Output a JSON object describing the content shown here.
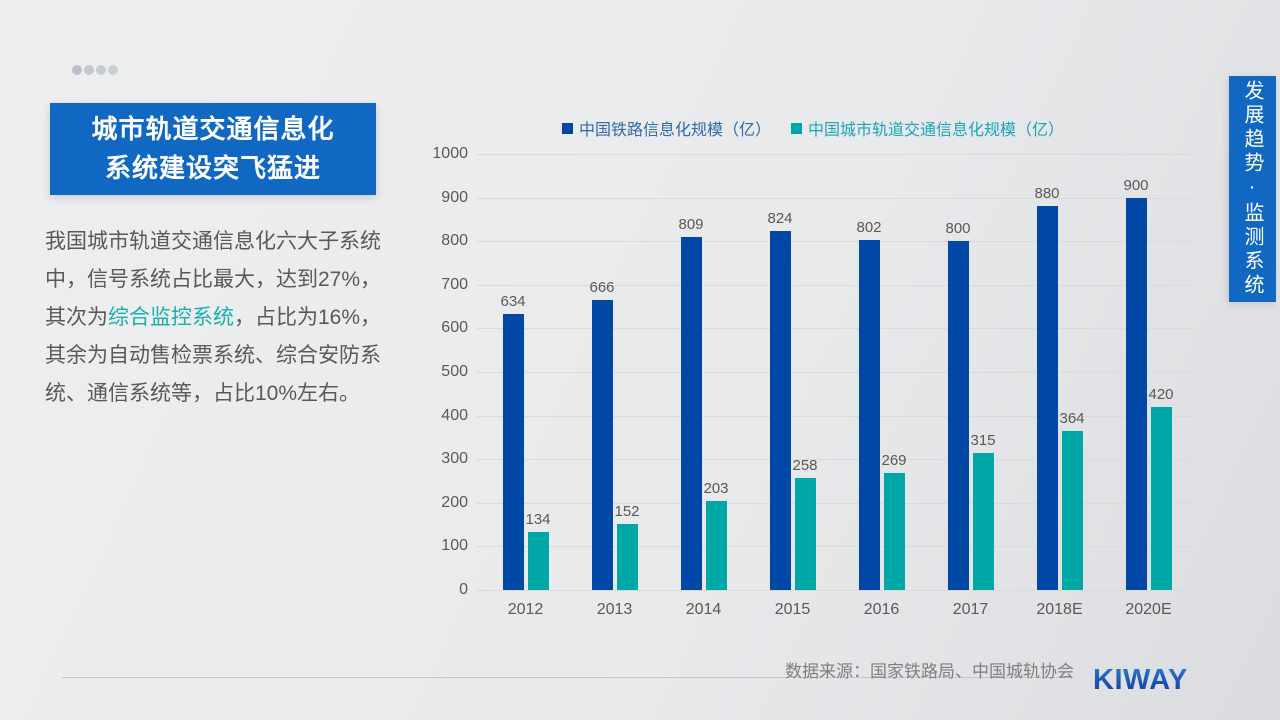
{
  "slide": {
    "dots_colors": [
      "#b9bfc9",
      "#c3c8d0",
      "#c7ccd3",
      "#cbd0d7"
    ],
    "title_lines": [
      "城市轨道交通信息化",
      "系统建设突飞猛进"
    ],
    "body": {
      "line1": "我国城市轨道交通信息化六大子系统",
      "line2": "中，信号系统占比最大，达到27%，",
      "line3_prefix": "其次为",
      "line3_highlight": "综合监控系统",
      "line3_suffix": "，占比为16%，",
      "line4": "其余为自动售检票系统、综合安防系",
      "line5": "统、通信系统等，占比10%左右。"
    },
    "side_banner_text": "发展趋势·监测系统",
    "source_note": "数据来源：国家铁路局、中国城轨协会",
    "logo_text": "KIWAY"
  },
  "colors": {
    "accent_blue": "#1168c2",
    "series1_bar": "#0047a6",
    "series2_bar": "#00a7a7",
    "series1_legend_text": "#2e6bad",
    "series2_legend_text": "#1aa4bd",
    "highlight_teal": "#17b0ae",
    "text_gray": "#595959"
  },
  "chart_data": {
    "type": "bar",
    "title": "",
    "xlabel": "",
    "ylabel": "",
    "categories": [
      "2012",
      "2013",
      "2014",
      "2015",
      "2016",
      "2017",
      "2018E",
      "2020E"
    ],
    "series": [
      {
        "name": "中国铁路信息化规模（亿）",
        "color": "#0047a6",
        "values": [
          634,
          666,
          809,
          824,
          802,
          800,
          880,
          900
        ]
      },
      {
        "name": "中国城市轨道交通信息化规模（亿）",
        "color": "#00a7a7",
        "values": [
          134,
          152,
          203,
          258,
          269,
          315,
          364,
          420
        ]
      }
    ],
    "ylim": [
      0,
      1000
    ],
    "ytick_step": 100,
    "grid": true,
    "legend_position": "top",
    "value_labels": true
  }
}
